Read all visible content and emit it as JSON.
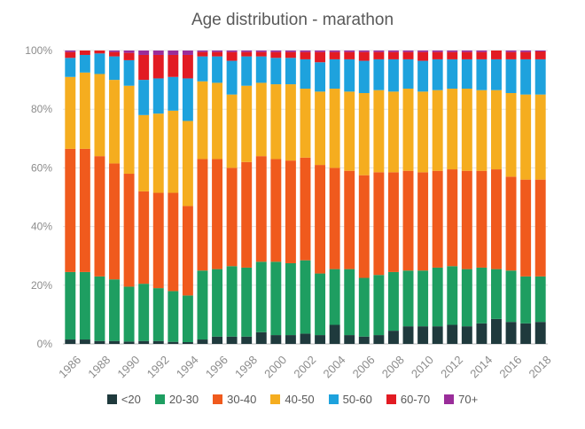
{
  "chart_data": {
    "type": "bar",
    "stacked": true,
    "normalized": true,
    "title": "Age distribution - marathon",
    "xlabel": "",
    "ylabel": "",
    "ylim": [
      0,
      100
    ],
    "y_ticks": [
      "0%",
      "20%",
      "40%",
      "60%",
      "80%",
      "100%"
    ],
    "x_tick_labels": [
      "1986",
      "1988",
      "1990",
      "1992",
      "1994",
      "1996",
      "1998",
      "2000",
      "2002",
      "2004",
      "2006",
      "2008",
      "2010",
      "2012",
      "2014",
      "2016",
      "2018"
    ],
    "categories": [
      "1986",
      "1987",
      "1988",
      "1989",
      "1990",
      "1991",
      "1992",
      "1993",
      "1994",
      "1995",
      "1996",
      "1997",
      "1998",
      "1999",
      "2000",
      "2001",
      "2002",
      "2003",
      "2004",
      "2005",
      "2006",
      "2007",
      "2008",
      "2009",
      "2010",
      "2011",
      "2012",
      "2013",
      "2014",
      "2015",
      "2016",
      "2017",
      "2018"
    ],
    "series": [
      {
        "name": "<20",
        "color": "#1f3a3d",
        "values": [
          1.5,
          1.5,
          1,
          1,
          0.8,
          1,
          1,
          0.7,
          0.6,
          1.5,
          2.5,
          2.5,
          2.5,
          4,
          3,
          3,
          3.5,
          3,
          6.5,
          3,
          2.5,
          3,
          4.5,
          6,
          6,
          6,
          6.5,
          6,
          7,
          8.5,
          7.5,
          7,
          7.5
        ]
      },
      {
        "name": "20-30",
        "color": "#1e9e61",
        "values": [
          23,
          23,
          22,
          21,
          18.7,
          19.5,
          18,
          17.3,
          15.9,
          23.5,
          23,
          24,
          23.5,
          24,
          25,
          24.5,
          25,
          21,
          19,
          22.5,
          20,
          20.5,
          20,
          19,
          19,
          20,
          20,
          19.5,
          19,
          17,
          17.5,
          16,
          15.5
        ]
      },
      {
        "name": "30-40",
        "color": "#f05a1d",
        "values": [
          42,
          42,
          41,
          39.5,
          38.5,
          31.5,
          32.5,
          33.5,
          30.5,
          38,
          37.5,
          33.5,
          36,
          36,
          35,
          35,
          35,
          37,
          34.5,
          33.5,
          35,
          35,
          34,
          34,
          33.5,
          33,
          33,
          33.5,
          33,
          34,
          32,
          33,
          33
        ]
      },
      {
        "name": "40-50",
        "color": "#f5ad1f",
        "values": [
          24.5,
          26,
          28,
          28.5,
          30,
          26,
          27,
          28,
          29,
          26.5,
          26,
          25,
          26,
          25,
          25.5,
          26,
          23.5,
          25,
          27,
          27,
          28,
          28,
          27.5,
          28,
          27.5,
          27.5,
          27.5,
          28,
          27.5,
          27,
          28.5,
          29,
          29
        ]
      },
      {
        "name": "50-60",
        "color": "#1ea2dd",
        "values": [
          6.5,
          6,
          7,
          8,
          8.7,
          12,
          12,
          11.5,
          14.5,
          8.5,
          9,
          11.5,
          10,
          9,
          9,
          9,
          10,
          10,
          10,
          11,
          11,
          10.5,
          11,
          10,
          10.5,
          10.5,
          10,
          10,
          10.5,
          10.5,
          11.5,
          12,
          12
        ]
      },
      {
        "name": "60-70",
        "color": "#e21b23",
        "values": [
          2,
          1.5,
          1,
          1.5,
          2.5,
          8.5,
          8,
          7.5,
          8,
          1.5,
          1.5,
          3,
          1.5,
          1.5,
          2,
          2,
          2.5,
          3.5,
          2.5,
          2.5,
          3,
          2.5,
          2.5,
          2.5,
          3,
          2.5,
          2.5,
          2.5,
          2.5,
          3,
          2.5,
          2.5,
          2.7
        ]
      },
      {
        "name": "70+",
        "color": "#9a2d9a",
        "values": [
          0.5,
          0,
          0,
          0.5,
          0.8,
          1.5,
          1.5,
          1.5,
          1.5,
          0.5,
          0.5,
          0.5,
          0.5,
          0.5,
          0.5,
          0.5,
          0.5,
          0.5,
          0.5,
          0.5,
          0.5,
          0.5,
          0.5,
          0.5,
          0.5,
          0.5,
          0.5,
          0.5,
          0.5,
          0,
          0.5,
          0.5,
          0.3
        ]
      }
    ],
    "legend_position": "bottom",
    "grid": true
  }
}
